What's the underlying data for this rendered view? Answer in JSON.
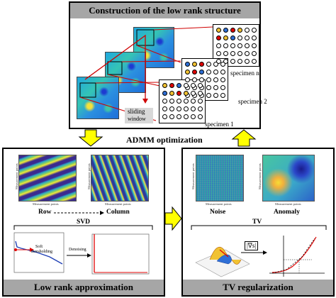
{
  "top": {
    "title": "Construction of the low rank structure",
    "sliding_window": [
      "sliding",
      "window"
    ],
    "specimens": [
      "specimen n",
      "specimen 2",
      "specimen 1"
    ]
  },
  "admm": "ADMM optimization",
  "left": {
    "title": "Low rank approximation",
    "row": "Row",
    "column": "Column",
    "svd": "SVD",
    "soft": [
      "Soft",
      "thresholding"
    ],
    "denoising": "Denoising",
    "x_axis": "Measurement points",
    "y_axis": "Measurement points"
  },
  "right": {
    "title": "TV regularization",
    "noise": "Noise",
    "anomaly": "Anomaly",
    "tv": "TV",
    "grad": "|∇s|",
    "x_axis": "Measurement points",
    "y_axis": "Measurement points"
  },
  "colors": {
    "header_gray": "#a6a6a6",
    "arrow_yellow": "#ffff00",
    "red": "#e00000",
    "blue": "#1f3fb5"
  }
}
